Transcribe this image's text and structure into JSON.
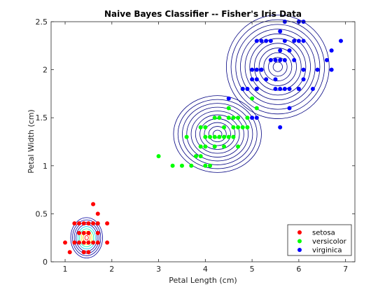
{
  "chart_data": {
    "type": "scatter",
    "title": "Naive Bayes Classifier -- Fisher's Iris Data",
    "xlabel": "Petal Length (cm)",
    "ylabel": "Petal Width (cm)",
    "xlim": [
      0.7,
      7.2
    ],
    "ylim": [
      0,
      2.5
    ],
    "xticks": [
      1,
      2,
      3,
      4,
      5,
      6,
      7
    ],
    "xtick_labels": [
      "1",
      "2",
      "3",
      "4",
      "5",
      "6",
      "7"
    ],
    "yticks": [
      0,
      0.5,
      1,
      1.5,
      2,
      2.5
    ],
    "ytick_labels": [
      "0",
      "0.5",
      "1",
      "1.5",
      "2",
      "2.5"
    ],
    "grid": false,
    "legend_position": "bottom-right",
    "series": [
      {
        "name": "setosa",
        "color": "#ff0000",
        "points": [
          [
            1.0,
            0.2
          ],
          [
            1.1,
            0.1
          ],
          [
            1.2,
            0.2
          ],
          [
            1.3,
            0.2
          ],
          [
            1.3,
            0.3
          ],
          [
            1.3,
            0.4
          ],
          [
            1.4,
            0.1
          ],
          [
            1.4,
            0.2
          ],
          [
            1.4,
            0.3
          ],
          [
            1.5,
            0.1
          ],
          [
            1.5,
            0.2
          ],
          [
            1.5,
            0.3
          ],
          [
            1.5,
            0.4
          ],
          [
            1.6,
            0.2
          ],
          [
            1.6,
            0.4
          ],
          [
            1.6,
            0.6
          ],
          [
            1.7,
            0.2
          ],
          [
            1.7,
            0.3
          ],
          [
            1.7,
            0.4
          ],
          [
            1.7,
            0.5
          ],
          [
            1.9,
            0.2
          ],
          [
            1.9,
            0.4
          ],
          [
            1.2,
            0.4
          ],
          [
            1.4,
            0.4
          ],
          [
            1.5,
            0.3
          ]
        ]
      },
      {
        "name": "versicolor",
        "color": "#00ff00",
        "points": [
          [
            3.0,
            1.1
          ],
          [
            3.3,
            1.0
          ],
          [
            3.5,
            1.0
          ],
          [
            3.6,
            1.3
          ],
          [
            3.7,
            1.0
          ],
          [
            3.8,
            1.1
          ],
          [
            3.9,
            1.1
          ],
          [
            3.9,
            1.2
          ],
          [
            3.9,
            1.4
          ],
          [
            4.0,
            1.0
          ],
          [
            4.0,
            1.2
          ],
          [
            4.0,
            1.3
          ],
          [
            4.1,
            1.0
          ],
          [
            4.1,
            1.3
          ],
          [
            4.2,
            1.2
          ],
          [
            4.2,
            1.3
          ],
          [
            4.2,
            1.5
          ],
          [
            4.3,
            1.3
          ],
          [
            4.4,
            1.2
          ],
          [
            4.4,
            1.3
          ],
          [
            4.4,
            1.4
          ],
          [
            4.5,
            1.3
          ],
          [
            4.5,
            1.5
          ],
          [
            4.5,
            1.6
          ],
          [
            4.6,
            1.3
          ],
          [
            4.6,
            1.4
          ],
          [
            4.6,
            1.5
          ],
          [
            4.7,
            1.2
          ],
          [
            4.7,
            1.4
          ],
          [
            4.7,
            1.5
          ],
          [
            4.8,
            1.4
          ],
          [
            4.8,
            1.8
          ],
          [
            4.9,
            1.5
          ],
          [
            5.0,
            1.7
          ],
          [
            5.1,
            1.6
          ],
          [
            4.0,
            1.4
          ],
          [
            4.3,
            1.5
          ],
          [
            4.9,
            1.4
          ]
        ]
      },
      {
        "name": "virginica",
        "color": "#0000ff",
        "points": [
          [
            4.5,
            1.7
          ],
          [
            4.8,
            1.8
          ],
          [
            4.9,
            1.8
          ],
          [
            5.0,
            2.0
          ],
          [
            5.1,
            2.0
          ],
          [
            5.1,
            2.3
          ],
          [
            5.1,
            1.9
          ],
          [
            5.1,
            1.5
          ],
          [
            5.1,
            1.8
          ],
          [
            5.2,
            2.0
          ],
          [
            5.2,
            2.3
          ],
          [
            5.3,
            1.9
          ],
          [
            5.3,
            2.3
          ],
          [
            5.4,
            2.1
          ],
          [
            5.5,
            1.8
          ],
          [
            5.5,
            2.1
          ],
          [
            5.6,
            1.8
          ],
          [
            5.6,
            2.1
          ],
          [
            5.6,
            2.2
          ],
          [
            5.6,
            2.4
          ],
          [
            5.6,
            1.4
          ],
          [
            5.7,
            2.1
          ],
          [
            5.7,
            2.3
          ],
          [
            5.8,
            1.6
          ],
          [
            5.8,
            1.8
          ],
          [
            5.8,
            2.2
          ],
          [
            5.9,
            2.1
          ],
          [
            5.9,
            2.3
          ],
          [
            6.0,
            1.8
          ],
          [
            6.0,
            2.5
          ],
          [
            6.1,
            1.9
          ],
          [
            6.1,
            2.3
          ],
          [
            6.1,
            2.5
          ],
          [
            6.3,
            1.8
          ],
          [
            6.4,
            2.0
          ],
          [
            6.6,
            2.1
          ],
          [
            6.7,
            2.0
          ],
          [
            6.7,
            2.2
          ],
          [
            6.9,
            2.3
          ],
          [
            5.0,
            1.5
          ],
          [
            5.4,
            2.3
          ],
          [
            5.7,
            2.5
          ],
          [
            5.2,
            2.0
          ],
          [
            5.0,
            1.9
          ],
          [
            6.1,
            2.0
          ],
          [
            5.5,
            1.9
          ],
          [
            5.7,
            1.8
          ],
          [
            6.0,
            2.3
          ]
        ]
      }
    ],
    "contours": [
      {
        "color": "#0000a0",
        "center": [
          1.46,
          0.25
        ],
        "sd": [
          0.17,
          0.105
        ],
        "levels": 9
      },
      {
        "color": "#000080",
        "center": [
          4.26,
          1.33
        ],
        "sd": [
          0.47,
          0.2
        ],
        "levels": 10
      },
      {
        "color": "#000080",
        "center": [
          5.55,
          2.03
        ],
        "sd": [
          0.55,
          0.27
        ],
        "levels": 11
      }
    ]
  }
}
